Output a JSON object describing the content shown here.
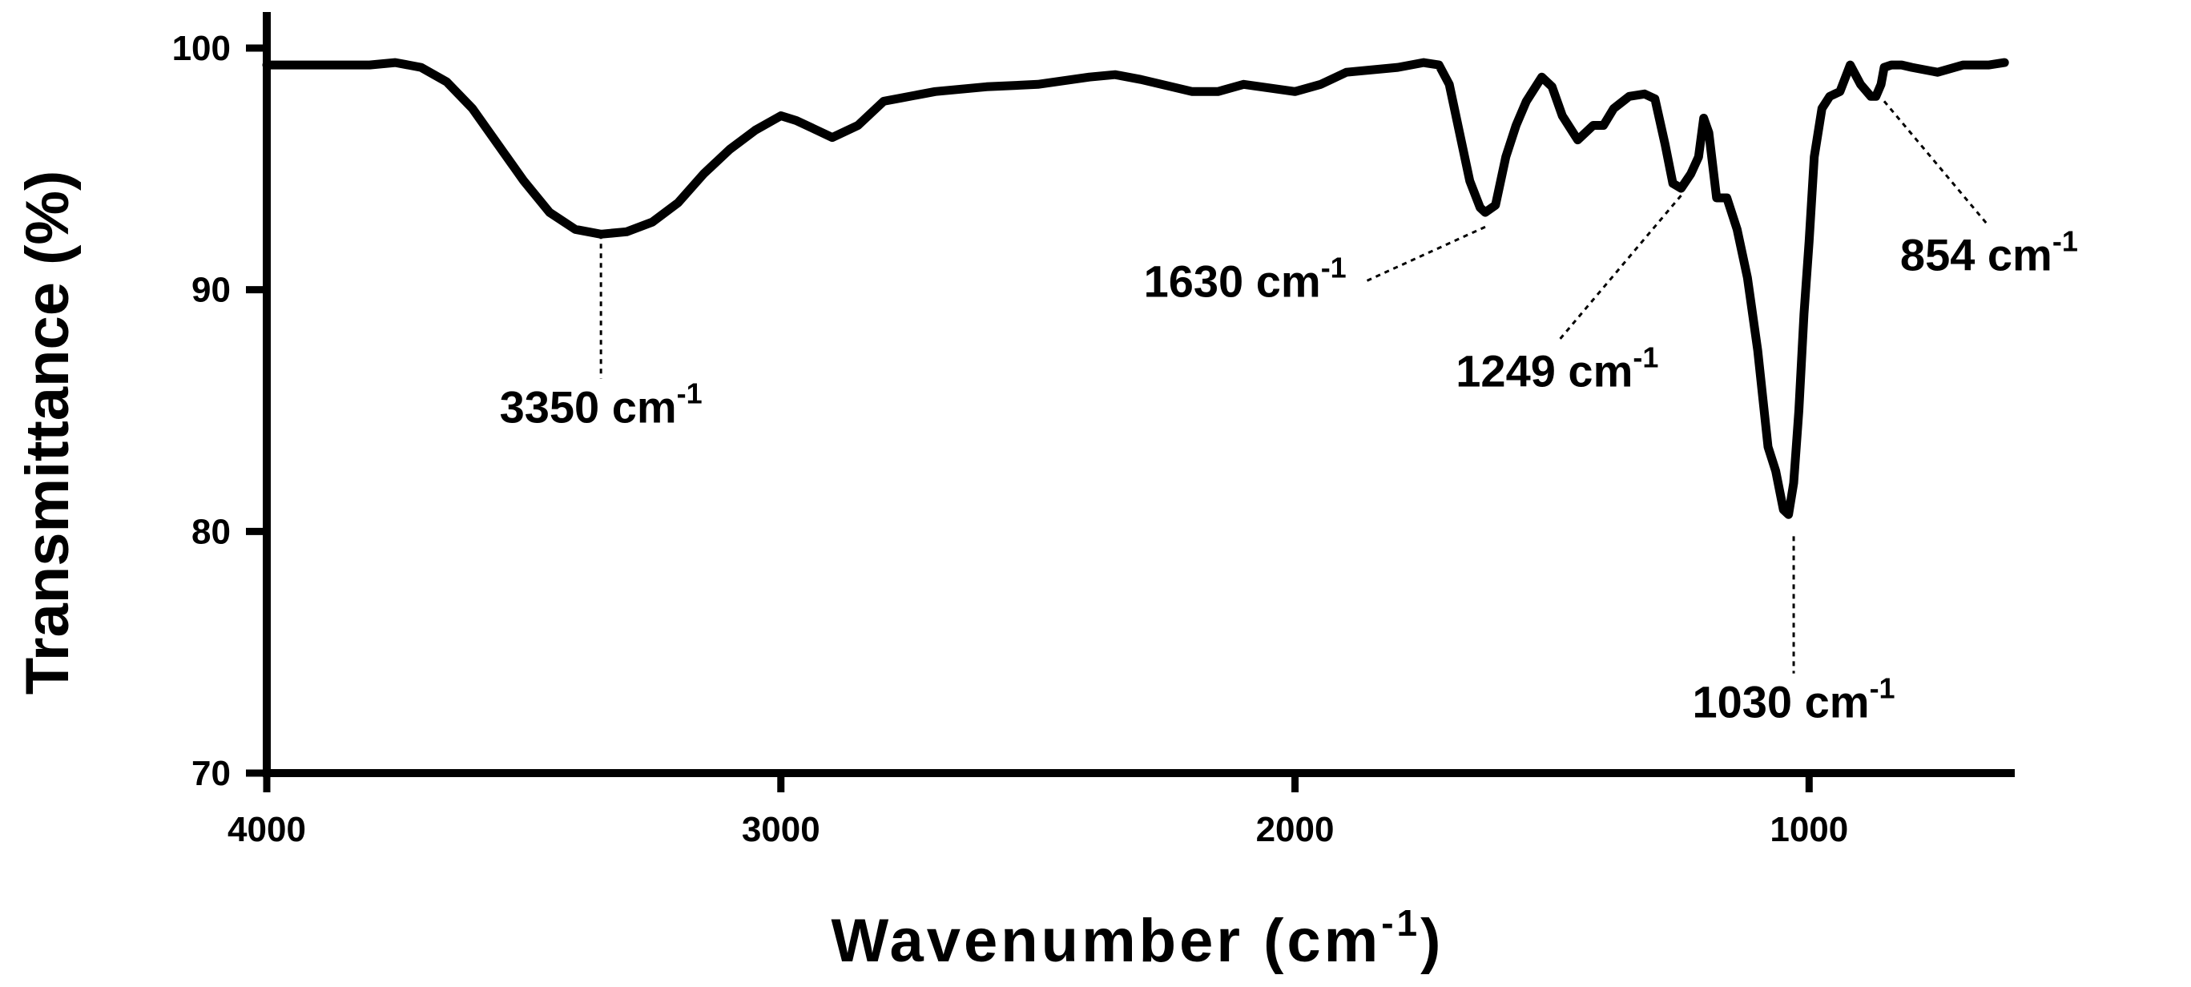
{
  "chart_data": {
    "type": "line",
    "title": "",
    "xlabel": "Wavenumber (cm",
    "xlabel_sup": "-1",
    "xlabel_close": ")",
    "ylabel": "Transmittance (%)",
    "xlim": [
      4000,
      600
    ],
    "ylim": [
      70,
      100
    ],
    "x_reversed": true,
    "grid": false,
    "x_ticks": [
      4000,
      3000,
      2000,
      1000
    ],
    "y_ticks": [
      70,
      80,
      90,
      100
    ],
    "x_tick_labels": [
      "4000",
      "3000",
      "2000",
      "1000"
    ],
    "y_tick_labels": [
      "70",
      "80",
      "90",
      "100"
    ],
    "series": [
      {
        "x": [
          4000,
          3900,
          3800,
          3750,
          3700,
          3650,
          3600,
          3550,
          3500,
          3450,
          3400,
          3350,
          3300,
          3250,
          3200,
          3150,
          3100,
          3050,
          3000,
          2970,
          2940,
          2900,
          2850,
          2800,
          2700,
          2600,
          2500,
          2400,
          2350,
          2300,
          2200,
          2150,
          2100,
          2000,
          1950,
          1900,
          1800,
          1750,
          1720,
          1700,
          1680,
          1660,
          1640,
          1630,
          1610,
          1590,
          1570,
          1550,
          1520,
          1500,
          1480,
          1450,
          1420,
          1400,
          1380,
          1350,
          1320,
          1300,
          1280,
          1265,
          1249,
          1230,
          1215,
          1205,
          1195,
          1180,
          1160,
          1140,
          1120,
          1100,
          1080,
          1065,
          1050,
          1040,
          1030,
          1020,
          1010,
          1000,
          990,
          975,
          960,
          940,
          920,
          900,
          880,
          870,
          860,
          854,
          840,
          820,
          800,
          750,
          700,
          650,
          620
        ],
        "y": [
          99.3,
          99.3,
          99.3,
          99.4,
          99.2,
          98.6,
          97.5,
          96.0,
          94.5,
          93.2,
          92.5,
          92.3,
          92.4,
          92.8,
          93.6,
          94.8,
          95.8,
          96.6,
          97.2,
          97.0,
          96.7,
          96.3,
          96.8,
          97.8,
          98.2,
          98.4,
          98.5,
          98.8,
          98.9,
          98.7,
          98.2,
          98.2,
          98.5,
          98.2,
          98.5,
          99.0,
          99.2,
          99.4,
          99.3,
          98.5,
          96.5,
          94.5,
          93.4,
          93.2,
          93.5,
          95.5,
          96.8,
          97.8,
          98.8,
          98.4,
          97.2,
          96.2,
          96.8,
          96.8,
          97.5,
          98.0,
          98.1,
          97.9,
          96.0,
          94.4,
          94.2,
          94.8,
          95.5,
          97.1,
          96.5,
          93.8,
          93.8,
          92.5,
          90.5,
          87.5,
          83.5,
          82.5,
          80.9,
          80.7,
          82.0,
          85.0,
          89.0,
          92.0,
          95.5,
          97.5,
          98.0,
          98.2,
          99.3,
          98.5,
          98.0,
          98.0,
          98.5,
          99.2,
          99.3,
          99.3,
          99.2,
          99.0,
          99.3,
          99.3,
          99.4
        ]
      }
    ],
    "annotations": [
      {
        "text": "3350 cm",
        "sup": "-1",
        "x": 3350,
        "y": 92.3,
        "tx": 3350,
        "ty": 84.5,
        "anchor": "middle"
      },
      {
        "text": "1630 cm",
        "sup": "-1",
        "x": 1630,
        "y": 92.6,
        "tx": 1900,
        "ty": 89.7,
        "anchor": "end"
      },
      {
        "text": "1249 cm",
        "sup": "-1",
        "x": 1249,
        "y": 93.9,
        "tx": 1490,
        "ty": 86.0,
        "anchor": "middle"
      },
      {
        "text": "1030 cm",
        "sup": "-1",
        "x": 1030,
        "y": 79.8,
        "tx": 1030,
        "ty": 72.3,
        "anchor": "middle"
      },
      {
        "text": "854 cm",
        "sup": "-1",
        "x": 854,
        "y": 97.8,
        "tx": 650,
        "ty": 90.8,
        "anchor": "middle"
      }
    ]
  }
}
